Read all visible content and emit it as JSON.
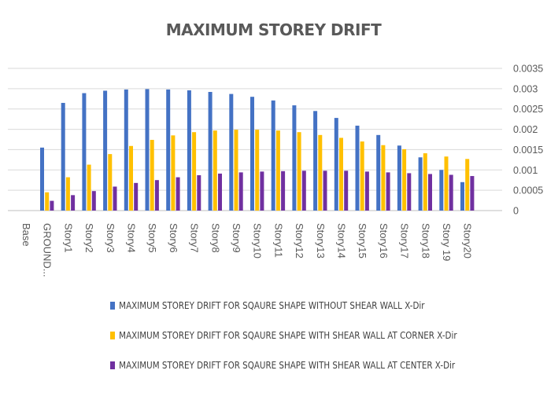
{
  "chart_data": {
    "type": "bar",
    "title": "MAXIMUM STOREY DRIFT",
    "categories": [
      "Base",
      "GROUND...",
      "Story1",
      "Story2",
      "Story3",
      "Story4",
      "Story5",
      "Story6",
      "Story7",
      "Story8",
      "Story9",
      "Story10",
      "Story11",
      "Story12",
      "Story13",
      "Story14",
      "Story15",
      "Story16",
      "Story17",
      "Story18",
      "Story 19",
      "Story20"
    ],
    "series": [
      {
        "name": "MAXIMUM STOREY DRIFT FOR SQAURE SHAPE WITHOUT SHEAR WALL X-Dir",
        "color": "#4472C4",
        "values": [
          null,
          0.00155,
          0.00265,
          0.00289,
          0.00295,
          0.00298,
          0.00299,
          0.00298,
          0.00296,
          0.00292,
          0.00287,
          0.0028,
          0.00271,
          0.00259,
          0.00245,
          0.00228,
          0.00209,
          0.00186,
          0.0016,
          0.00131,
          0.001,
          0.0007
        ]
      },
      {
        "name": "MAXIMUM STOREY DRIFT FOR SQAURE SHAPE WITH SHEAR WALL AT CORNER X-Dir",
        "color": "#FFC000",
        "values": [
          null,
          0.00045,
          0.00082,
          0.00113,
          0.00139,
          0.00159,
          0.00174,
          0.00185,
          0.00193,
          0.00197,
          0.00199,
          0.00199,
          0.00197,
          0.00193,
          0.00186,
          0.00179,
          0.0017,
          0.00161,
          0.00151,
          0.00141,
          0.00133,
          0.00127
        ]
      },
      {
        "name": "MAXIMUM STOREY DRIFT FOR SQAURE SHAPE WITH SHEAR WALL AT CENTER X-Dir",
        "color": "#7030A0",
        "values": [
          null,
          0.00024,
          0.00038,
          0.00048,
          0.00059,
          0.00068,
          0.00075,
          0.00082,
          0.00087,
          0.00091,
          0.00094,
          0.00096,
          0.00097,
          0.00098,
          0.00098,
          0.00098,
          0.00096,
          0.00094,
          0.00092,
          0.0009,
          0.00088,
          0.00085
        ]
      }
    ],
    "ylim": [
      0,
      0.0035
    ],
    "yticks": [
      0,
      0.0005,
      0.001,
      0.0015,
      0.002,
      0.0025,
      0.003,
      0.0035
    ],
    "ytick_labels": [
      "0",
      "0.0005",
      "0.001",
      "0.0015",
      "0.002",
      "0.0025",
      "0.003",
      "0.0035"
    ],
    "y_axis_position": "right",
    "grid": true,
    "legend_position": "bottom"
  }
}
